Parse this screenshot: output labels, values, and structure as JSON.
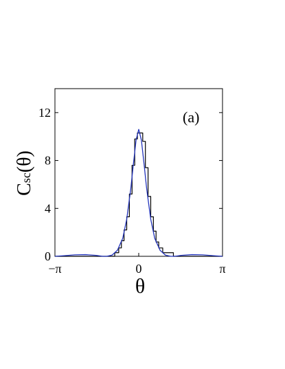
{
  "chart_data": {
    "type": "line",
    "title": "",
    "panel_label": "(a)",
    "xlabel": "θ",
    "ylabel": {
      "main": "C",
      "sub": "sc",
      "suffix": "(θ)"
    },
    "xlim": [
      -3.14159,
      3.14159
    ],
    "ylim": [
      0,
      14
    ],
    "x_ticks": [
      {
        "value": -3.14159,
        "label": "−π"
      },
      {
        "value": 0,
        "label": "0"
      },
      {
        "value": 3.14159,
        "label": "π"
      }
    ],
    "y_ticks": [
      {
        "value": 0,
        "label": "0"
      },
      {
        "value": 4,
        "label": "4"
      },
      {
        "value": 8,
        "label": "8"
      },
      {
        "value": 12,
        "label": "12"
      }
    ],
    "grid": false,
    "legend": "none",
    "series": [
      {
        "style": "step",
        "color": "#000000",
        "x": [
          -3.14159,
          -1.3,
          -0.9,
          -0.75,
          -0.65,
          -0.55,
          -0.45,
          -0.35,
          -0.25,
          -0.15,
          -0.05,
          0.05,
          0.15,
          0.25,
          0.35,
          0.45,
          0.55,
          0.65,
          0.75,
          0.9,
          1.3,
          3.14159
        ],
        "y": [
          0,
          0,
          0.3,
          0.7,
          1.3,
          2.2,
          3.3,
          5.2,
          7.6,
          9.8,
          10.3,
          10.3,
          9.6,
          7.4,
          5.0,
          3.3,
          2.1,
          1.2,
          0.7,
          0.3,
          0,
          0
        ]
      },
      {
        "style": "line",
        "color": "#2233bb",
        "x": [
          -3.14,
          -2.8,
          -2.4,
          -2.0,
          -1.6,
          -1.35,
          -1.2,
          -1.0,
          -0.8,
          -0.6,
          -0.45,
          -0.3,
          -0.2,
          -0.1,
          0.0,
          0.1,
          0.2,
          0.3,
          0.45,
          0.6,
          0.8,
          1.0,
          1.2,
          1.35,
          1.6,
          2.0,
          2.4,
          2.8,
          3.14
        ],
        "y": [
          0.0,
          0.05,
          0.12,
          0.14,
          0.08,
          0.0,
          0.0,
          0.1,
          0.5,
          1.5,
          3.1,
          5.6,
          7.7,
          9.7,
          10.6,
          9.7,
          7.7,
          5.6,
          3.1,
          1.5,
          0.5,
          0.1,
          0.0,
          0.0,
          0.08,
          0.14,
          0.12,
          0.05,
          0.0
        ]
      }
    ]
  }
}
